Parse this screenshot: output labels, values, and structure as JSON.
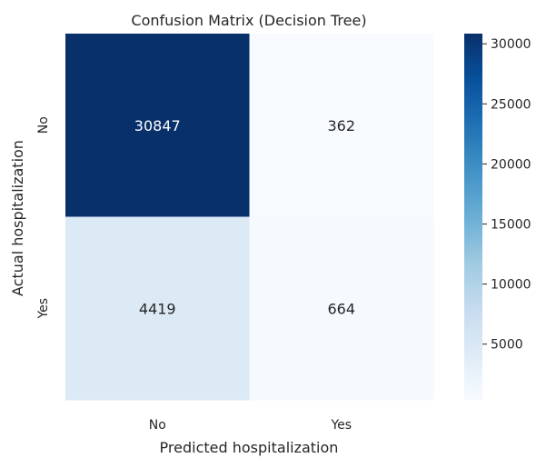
{
  "chart_data": {
    "type": "heatmap",
    "title": "Confusion Matrix (Decision Tree)",
    "xlabel": "Predicted hospitalization",
    "ylabel": "Actual hospitalization",
    "x_categories": [
      "No",
      "Yes"
    ],
    "y_categories": [
      "No",
      "Yes"
    ],
    "values": [
      [
        30847,
        362
      ],
      [
        4419,
        664
      ]
    ],
    "colorbar": {
      "ticks": [
        5000,
        10000,
        15000,
        20000,
        25000,
        30000
      ],
      "min": 362,
      "max": 30847
    },
    "colormap": "Blues",
    "colors": {
      "low": "#f7fbff",
      "high": "#08306b"
    },
    "grid": false,
    "legend": "colorbar-right"
  }
}
